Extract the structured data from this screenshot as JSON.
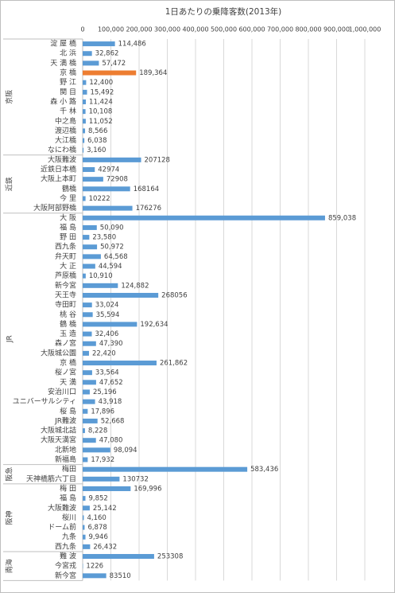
{
  "chart_data": {
    "type": "grouped-hbar",
    "title": "1日あたりの乗降客数(2013年)",
    "xlim": [
      0,
      1000000
    ],
    "xticks": [
      0,
      {
        "value": 100000,
        "label": "100,000"
      },
      {
        "value": 200000,
        "label": "200,000"
      },
      {
        "value": 300000,
        "label": "300,000"
      },
      {
        "value": 400000,
        "label": "400,000"
      },
      {
        "value": 500000,
        "label": "500,000"
      },
      {
        "value": 600000,
        "label": "600,000"
      },
      {
        "value": 700000,
        "label": "700,000"
      },
      {
        "value": 800000,
        "label": "800,000"
      },
      {
        "value": 900000,
        "label": "900,000"
      },
      {
        "value": 1000000,
        "label": "1,000,000"
      }
    ],
    "grid": true,
    "groups": [
      {
        "name": "京阪",
        "categories": [
          "淀 屋 橋",
          "北 浜",
          "天 満 橋",
          "京 橋",
          "野 江",
          "関 目",
          "森 小 路",
          "千 林",
          "中之島",
          "渡辺橋",
          "大江橋",
          "なにわ橋"
        ],
        "values": [
          114486,
          32862,
          57472,
          189364,
          12400,
          15492,
          11424,
          10108,
          11052,
          8566,
          6038,
          3160
        ],
        "value_labels": [
          "114,486",
          "32,862",
          "57,472",
          "189,364",
          "12,400",
          "15,492",
          "11,424",
          "10,108",
          "11,052",
          "8,566",
          "6,038",
          "3,160"
        ],
        "colors": [
          "#5b9bd5",
          "#5b9bd5",
          "#5b9bd5",
          "#ed7d31",
          "#5b9bd5",
          "#5b9bd5",
          "#5b9bd5",
          "#5b9bd5",
          "#5b9bd5",
          "#5b9bd5",
          "#5b9bd5",
          "#5b9bd5"
        ]
      },
      {
        "name": "近鉄",
        "categories": [
          "大阪難波",
          "近鉄日本橋",
          "大阪上本町",
          "鶴橋",
          "今 里",
          "大阪阿部野橋"
        ],
        "values": [
          207128,
          42974,
          72908,
          168164,
          10222,
          176276
        ],
        "value_labels": [
          "207128",
          "42974",
          "72908",
          "168164",
          "10222",
          "176276"
        ],
        "colors": [
          "#5b9bd5",
          "#5b9bd5",
          "#5b9bd5",
          "#5b9bd5",
          "#5b9bd5",
          "#5b9bd5"
        ]
      },
      {
        "name": "JR",
        "categories": [
          "大 阪",
          "福 島",
          "野 田",
          "西九条",
          "弁天町",
          "大 正",
          "芦原橋",
          "新今宮",
          "天王寺",
          "寺田町",
          "桃 谷",
          "鶴 橋",
          "玉 造",
          "森ノ宮",
          "大阪城公園",
          "京 橋",
          "桜ノ宮",
          "天 満",
          "安治川口",
          "ユニバーサルシティ",
          "桜 島",
          "JR難波",
          "大阪城北詰",
          "大阪天満宮",
          "北新地",
          "新福島"
        ],
        "values": [
          859038,
          50090,
          23580,
          50972,
          64568,
          44594,
          10910,
          124882,
          268056,
          33024,
          35594,
          192634,
          32406,
          47390,
          22420,
          261862,
          33564,
          47652,
          25196,
          43918,
          17896,
          52668,
          8228,
          47080,
          98094,
          17932
        ],
        "value_labels": [
          "859,038",
          "50,090",
          "23,580",
          "50,972",
          "64,568",
          "44,594",
          "10,910",
          "124,882",
          "268056",
          "33,024",
          "35,594",
          "192,634",
          "32,406",
          "47,390",
          "22,420",
          "261,862",
          "33,564",
          "47,652",
          "25,196",
          "43,918",
          "17,896",
          "52,668",
          "8,228",
          "47,080",
          "98,094",
          "17,932"
        ],
        "colors": [
          "#5b9bd5",
          "#5b9bd5",
          "#5b9bd5",
          "#5b9bd5",
          "#5b9bd5",
          "#5b9bd5",
          "#5b9bd5",
          "#5b9bd5",
          "#5b9bd5",
          "#5b9bd5",
          "#5b9bd5",
          "#5b9bd5",
          "#5b9bd5",
          "#5b9bd5",
          "#5b9bd5",
          "#5b9bd5",
          "#5b9bd5",
          "#5b9bd5",
          "#5b9bd5",
          "#5b9bd5",
          "#5b9bd5",
          "#5b9bd5",
          "#5b9bd5",
          "#5b9bd5",
          "#5b9bd5",
          "#5b9bd5"
        ]
      },
      {
        "name": "阪急",
        "categories": [
          "梅田",
          "天神橋筋六丁目"
        ],
        "values": [
          583436,
          130732
        ],
        "value_labels": [
          "583,436",
          "130732"
        ],
        "colors": [
          "#5b9bd5",
          "#5b9bd5"
        ]
      },
      {
        "name": "阪神",
        "categories": [
          "梅 田",
          "福 島",
          "大阪難波",
          "桜川",
          "ドーム前",
          "九条",
          "西九条"
        ],
        "values": [
          169996,
          9852,
          25142,
          4160,
          6878,
          9946,
          26432
        ],
        "value_labels": [
          "169,996",
          "9,852",
          "25,142",
          "4,160",
          "6,878",
          "9,946",
          "26,432"
        ],
        "colors": [
          "#5b9bd5",
          "#5b9bd5",
          "#5b9bd5",
          "#5b9bd5",
          "#5b9bd5",
          "#5b9bd5",
          "#5b9bd5"
        ]
      },
      {
        "name": "南海",
        "categories": [
          "難 波",
          "今宮戎",
          "新今宮"
        ],
        "values": [
          253308,
          1226,
          83510
        ],
        "value_labels": [
          "253308",
          "1226",
          "83510"
        ],
        "colors": [
          "#5b9bd5",
          "#5b9bd5",
          "#5b9bd5"
        ]
      }
    ]
  }
}
